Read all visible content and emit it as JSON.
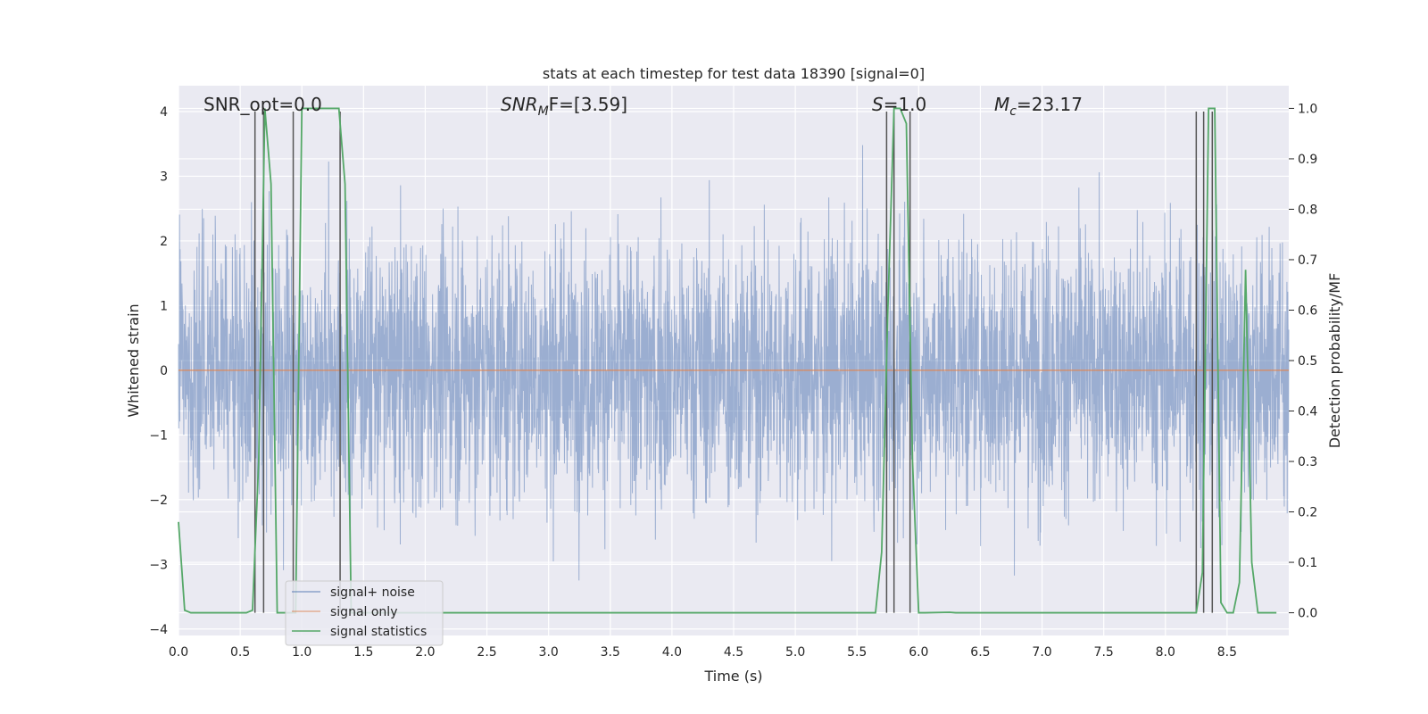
{
  "chart_data": {
    "type": "line",
    "title": "stats at each timestep for test data 18390 [signal=0]",
    "xlabel": "Time (s)",
    "ylabel": "Whitened strain",
    "y2label": "Detection probability/MF",
    "xlim": [
      0,
      9
    ],
    "ylim": [
      -4.1,
      4.4
    ],
    "y2lim": [
      -0.045,
      1.045
    ],
    "x_ticks": [
      "0.0",
      "0.5",
      "1.0",
      "1.5",
      "2.0",
      "2.5",
      "3.0",
      "3.5",
      "4.0",
      "4.5",
      "5.0",
      "5.5",
      "6.0",
      "6.5",
      "7.0",
      "7.5",
      "8.0",
      "8.5"
    ],
    "y_ticks": [
      "4",
      "3",
      "2",
      "1",
      "0",
      "−1",
      "−2",
      "−3",
      "−4"
    ],
    "y2_ticks": [
      "1.0",
      "0.9",
      "0.8",
      "0.7",
      "0.6",
      "0.5",
      "0.4",
      "0.3",
      "0.2",
      "0.1",
      "0.0"
    ],
    "grid": true,
    "legend_position": "lower-left",
    "annotations": {
      "snr_opt": "SNR_opt=0.0",
      "snr_mf_main": "SNR",
      "snr_mf_sub": "M",
      "snr_mf_rest": "F=[3.59]",
      "s_var": "S",
      "s_rest": "=1.0",
      "mc_var": "M",
      "mc_sub": "c",
      "mc_rest": "=23.17"
    },
    "series": [
      {
        "name": "signal+ noise",
        "color": "#4c72b0",
        "description_values": "whitened strain noise, roughly within [-3.6, 4.0]"
      },
      {
        "name": "signal only",
        "color": "#dd8452",
        "x": [
          0,
          9
        ],
        "y": [
          0,
          0
        ]
      },
      {
        "name": "signal statistics",
        "color": "#55a868",
        "axis": "right",
        "x": [
          0.0,
          0.05,
          0.1,
          0.15,
          0.55,
          0.6,
          0.65,
          0.7,
          0.75,
          0.8,
          0.85,
          0.9,
          0.95,
          1.0,
          1.05,
          1.3,
          1.35,
          1.4,
          1.45,
          5.6,
          5.65,
          5.7,
          5.75,
          5.8,
          5.85,
          5.9,
          5.95,
          6.0,
          6.05,
          6.25,
          6.3,
          8.2,
          8.25,
          8.3,
          8.35,
          8.4,
          8.45,
          8.5,
          8.55,
          8.6,
          8.65,
          8.7,
          8.75,
          8.8,
          8.85,
          8.9
        ],
        "y": [
          0.18,
          0.005,
          0.0,
          0.0,
          0.0,
          0.005,
          0.3,
          1.0,
          0.85,
          0.0,
          0.0,
          0.0,
          0.0,
          1.0,
          1.0,
          1.0,
          0.85,
          0.0,
          0.0,
          0.0,
          0.0,
          0.12,
          0.6,
          1.0,
          1.0,
          0.97,
          0.3,
          0.0,
          0.0,
          0.001,
          0.0,
          0.0,
          0.0,
          0.08,
          1.0,
          1.0,
          0.02,
          0.0,
          0.0,
          0.06,
          0.68,
          0.1,
          0.0,
          0.0,
          0.0,
          0.0
        ]
      }
    ],
    "vlines_x": [
      0.62,
      0.69,
      0.93,
      1.31,
      5.74,
      5.8,
      5.93,
      8.25,
      8.31,
      8.38
    ]
  }
}
